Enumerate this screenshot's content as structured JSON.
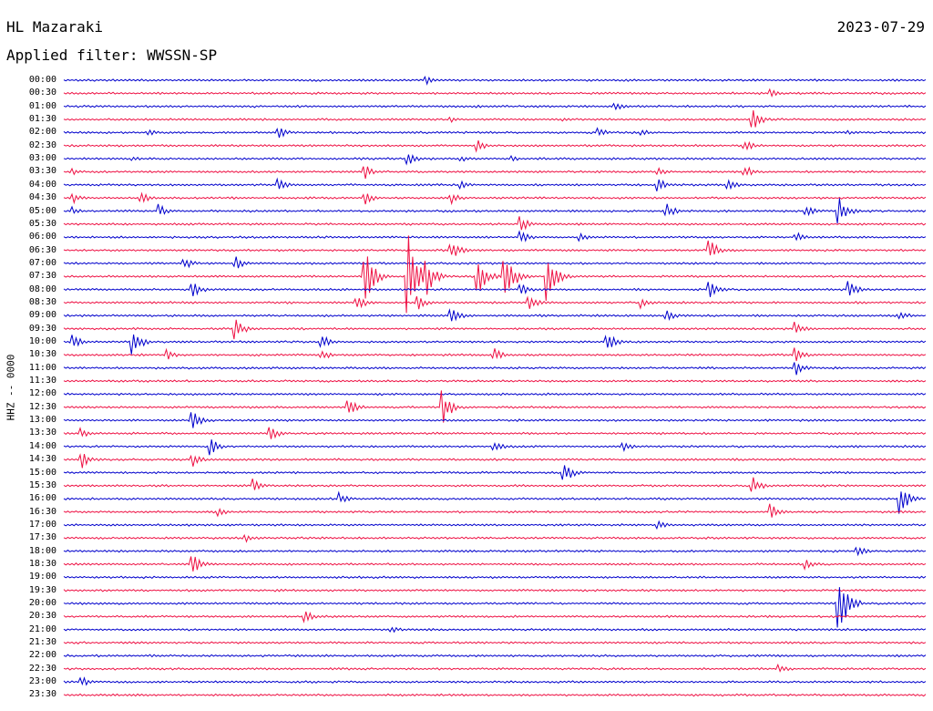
{
  "header": {
    "station": "HL Mazaraki",
    "date": "2023-07-29",
    "filter": "Applied filter: WWSSN-SP"
  },
  "colors": {
    "trace_a": "#0000cc",
    "trace_b": "#ee1144"
  },
  "chart_data": {
    "type": "line",
    "title": "HL Mazaraki",
    "ylabel": "HHZ -- 0000",
    "y_tick_labels": [
      "00:00",
      "00:30",
      "01:00",
      "01:30",
      "02:00",
      "02:30",
      "03:00",
      "03:30",
      "04:00",
      "04:30",
      "05:00",
      "05:30",
      "06:00",
      "06:30",
      "07:00",
      "07:30",
      "08:00",
      "08:30",
      "09:00",
      "09:30",
      "10:00",
      "10:30",
      "11:00",
      "11:30",
      "12:00",
      "12:30",
      "13:00",
      "13:30",
      "14:00",
      "14:30",
      "15:00",
      "15:30",
      "16:00",
      "16:30",
      "17:00",
      "17:30",
      "18:00",
      "18:30",
      "19:00",
      "19:30",
      "20:00",
      "20:30",
      "21:00",
      "21:30",
      "22:00",
      "22:30",
      "23:00",
      "23:30"
    ],
    "trace_minutes": 30,
    "grid": false,
    "legend": "none",
    "events": [
      [
        0,
        0.42,
        0.8
      ],
      [
        1,
        0.82,
        0.6
      ],
      [
        2,
        0.64,
        0.6
      ],
      [
        2,
        0.48,
        0.2
      ],
      [
        3,
        0.8,
        1.4
      ],
      [
        3,
        0.45,
        0.4
      ],
      [
        3,
        0.58,
        0.3
      ],
      [
        4,
        0.62,
        0.8
      ],
      [
        4,
        0.25,
        0.8
      ],
      [
        4,
        0.1,
        0.4
      ],
      [
        4,
        0.67,
        0.6
      ],
      [
        4,
        0.91,
        0.3
      ],
      [
        5,
        0.48,
        0.8
      ],
      [
        5,
        0.79,
        0.9
      ],
      [
        6,
        0.4,
        0.9
      ],
      [
        6,
        0.46,
        0.6
      ],
      [
        6,
        0.08,
        0.4
      ],
      [
        6,
        0.52,
        0.4
      ],
      [
        7,
        0.35,
        1.0
      ],
      [
        7,
        0.79,
        1.0
      ],
      [
        7,
        0.01,
        0.6
      ],
      [
        7,
        0.69,
        0.7
      ],
      [
        8,
        0.25,
        1.0
      ],
      [
        8,
        0.46,
        0.7
      ],
      [
        8,
        0.69,
        0.9
      ],
      [
        8,
        0.77,
        0.9
      ],
      [
        9,
        0.01,
        0.9
      ],
      [
        9,
        0.09,
        0.9
      ],
      [
        9,
        0.35,
        0.9
      ],
      [
        9,
        0.45,
        0.8
      ],
      [
        10,
        0.01,
        0.6
      ],
      [
        10,
        0.11,
        1.0
      ],
      [
        10,
        0.7,
        1.0
      ],
      [
        10,
        0.9,
        1.8
      ],
      [
        10,
        0.86,
        1.0
      ],
      [
        11,
        0.53,
        1.3
      ],
      [
        12,
        0.53,
        1.0
      ],
      [
        12,
        0.6,
        0.8
      ],
      [
        12,
        0.85,
        0.7
      ],
      [
        13,
        0.45,
        1.4
      ],
      [
        13,
        0.75,
        1.5
      ],
      [
        14,
        0.14,
        1.0
      ],
      [
        14,
        0.2,
        1.0
      ],
      [
        15,
        0.35,
        4.0
      ],
      [
        15,
        0.4,
        6.0
      ],
      [
        15,
        0.51,
        5.0
      ],
      [
        15,
        0.56,
        4.0
      ],
      [
        15,
        0.42,
        3.0
      ],
      [
        15,
        0.48,
        3.0
      ],
      [
        16,
        0.15,
        1.2
      ],
      [
        16,
        0.53,
        1.0
      ],
      [
        16,
        0.75,
        1.3
      ],
      [
        16,
        0.91,
        1.3
      ],
      [
        17,
        0.34,
        1.2
      ],
      [
        17,
        0.41,
        1.2
      ],
      [
        17,
        0.54,
        1.2
      ],
      [
        17,
        0.67,
        0.8
      ],
      [
        18,
        0.45,
        1.2
      ],
      [
        18,
        0.7,
        0.8
      ],
      [
        18,
        0.97,
        0.8
      ],
      [
        19,
        0.2,
        1.5
      ],
      [
        19,
        0.85,
        1.0
      ],
      [
        20,
        0.01,
        1.2
      ],
      [
        20,
        0.08,
        2.0
      ],
      [
        20,
        0.3,
        1.0
      ],
      [
        20,
        0.63,
        1.4
      ],
      [
        21,
        0.12,
        0.8
      ],
      [
        21,
        0.3,
        0.8
      ],
      [
        21,
        0.5,
        0.9
      ],
      [
        21,
        0.85,
        1.0
      ],
      [
        22,
        0.85,
        1.0
      ],
      [
        25,
        0.33,
        1.3
      ],
      [
        25,
        0.44,
        2.4
      ],
      [
        26,
        0.15,
        1.5
      ],
      [
        27,
        0.02,
        0.8
      ],
      [
        27,
        0.24,
        1.0
      ],
      [
        28,
        0.17,
        1.2
      ],
      [
        28,
        0.5,
        0.8
      ],
      [
        28,
        0.65,
        0.7
      ],
      [
        29,
        0.02,
        1.4
      ],
      [
        29,
        0.15,
        1.0
      ],
      [
        30,
        0.58,
        1.8
      ],
      [
        31,
        0.22,
        1.0
      ],
      [
        31,
        0.8,
        1.2
      ],
      [
        32,
        0.32,
        0.9
      ],
      [
        32,
        0.97,
        2.4
      ],
      [
        33,
        0.18,
        0.8
      ],
      [
        33,
        0.82,
        1.2
      ],
      [
        34,
        0.69,
        0.6
      ],
      [
        35,
        0.21,
        0.7
      ],
      [
        36,
        0.92,
        0.8
      ],
      [
        37,
        0.15,
        1.4
      ],
      [
        37,
        0.86,
        1.0
      ],
      [
        40,
        0.9,
        5.0
      ],
      [
        41,
        0.28,
        1.0
      ],
      [
        42,
        0.38,
        0.6
      ],
      [
        45,
        0.83,
        0.8
      ],
      [
        46,
        0.02,
        0.9
      ]
    ]
  }
}
